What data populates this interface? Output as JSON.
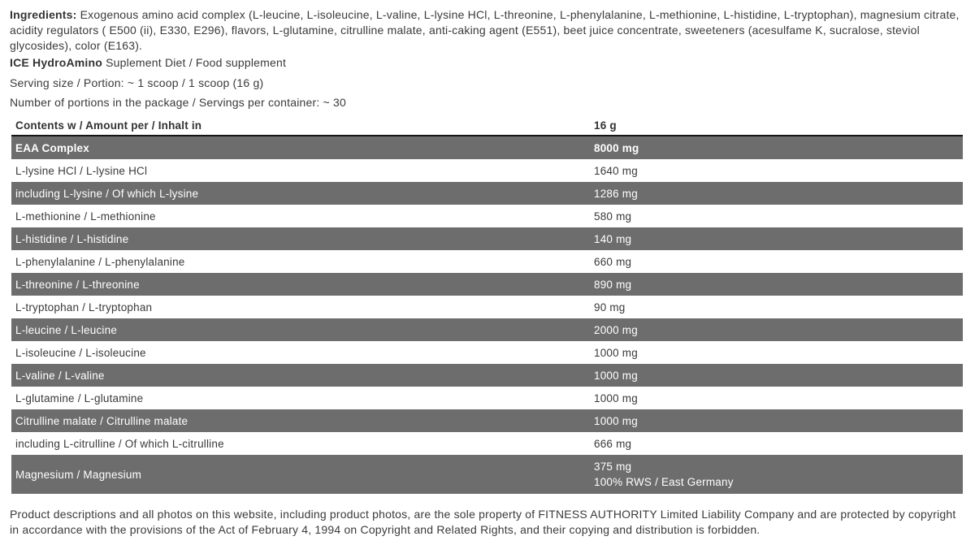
{
  "colors": {
    "dark_row_bg": "#6d6d6d",
    "dark_row_text": "#ffffff",
    "body_text": "#3a3a3a",
    "header_rule": "#151515"
  },
  "intro": {
    "ingredients_label": "Ingredients:",
    "ingredients_text": " Exogenous amino acid complex (L-leucine, L-isoleucine, L-valine, L-lysine HCl, L-threonine, L-phenylalanine, L-methionine, L-histidine, L-tryptophan), magnesium citrate, acidity regulators ( E500 (ii), E330, E296), flavors, L-glutamine, citrulline malate, anti-caking agent (E551), beet juice concentrate, sweeteners (acesulfame K, sucralose, steviol glycosides), color (E163).",
    "product_name": "ICE HydroAmino",
    "product_suffix": " Suplement Diet / Food supplement",
    "serving_size": "Serving size / Portion: ~ 1 scoop / 1 scoop (16 g)",
    "servings_per_container": "Number of portions in the package / Servings per container: ~ 30"
  },
  "table": {
    "header": {
      "label": "Contents w / Amount per / Inhalt in",
      "amount": "16 g"
    },
    "rows": [
      {
        "label": "EAA Complex",
        "amount": "8000 mg",
        "style": "dark-bold"
      },
      {
        "label": "L-lysine HCl / L-lysine HCl",
        "amount": "1640 mg",
        "style": "light"
      },
      {
        "label": "including L-lysine / Of which L-lysine",
        "amount": "1286 mg",
        "style": "dark"
      },
      {
        "label": "L-methionine / L-methionine",
        "amount": "580 mg",
        "style": "light"
      },
      {
        "label": "L-histidine / L-histidine",
        "amount": "140 mg",
        "style": "dark"
      },
      {
        "label": "L-phenylalanine / L-phenylalanine",
        "amount": "660 mg",
        "style": "light"
      },
      {
        "label": "L-threonine / L-threonine",
        "amount": "890 mg",
        "style": "dark"
      },
      {
        "label": "L-tryptophan / L-tryptophan",
        "amount": "90 mg",
        "style": "light"
      },
      {
        "label": "L-leucine / L-leucine",
        "amount": "2000 mg",
        "style": "dark"
      },
      {
        "label": "L-isoleucine / L-isoleucine",
        "amount": "1000 mg",
        "style": "light"
      },
      {
        "label": "L-valine / L-valine",
        "amount": "1000 mg",
        "style": "dark"
      },
      {
        "label": "L-glutamine / L-glutamine",
        "amount": "1000 mg",
        "style": "light"
      },
      {
        "label": "Citrulline malate / Citrulline malate",
        "amount": "1000 mg",
        "style": "dark"
      },
      {
        "label": "including L-citrulline / Of which L-citrulline",
        "amount": "666 mg",
        "style": "light"
      },
      {
        "label": "Magnesium / Magnesium",
        "amount": "375 mg",
        "amount2": "100% RWS / East Germany",
        "style": "dark"
      }
    ]
  },
  "footer": {
    "text": "Product descriptions and all photos on this website, including product photos, are the sole property of FITNESS AUTHORITY Limited Liability Company and are protected by copyright in accordance with the provisions of the Act of February 4, 1994 on Copyright and Related Rights, and their copying and distribution is forbidden."
  }
}
